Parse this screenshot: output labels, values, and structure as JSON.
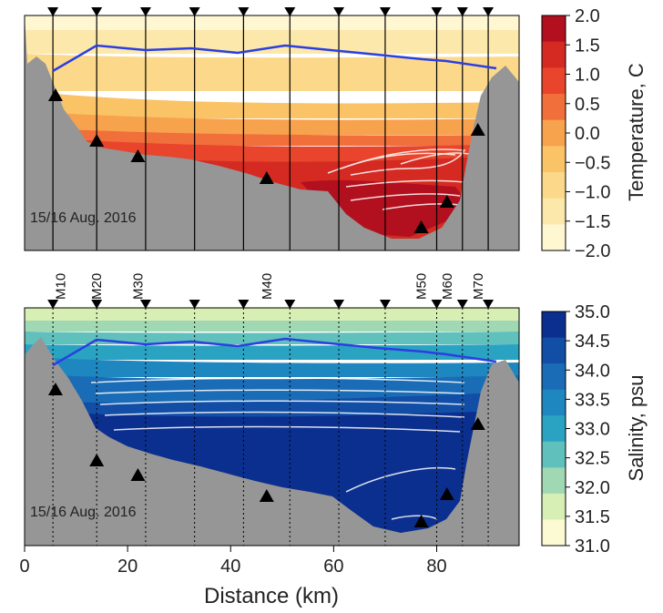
{
  "figure": {
    "xlabel": "Distance (km)",
    "x_ticks": [
      0,
      20,
      40,
      60,
      80
    ],
    "xlim": [
      0,
      96
    ]
  },
  "chart_data": [
    {
      "type": "heatmap",
      "panel": "temperature",
      "date_label": "15/16 Aug. 2016",
      "colorbar_label": "Temperature, C",
      "colorbar_ticks": [
        "2.0",
        "1.5",
        "1.0",
        "0.5",
        "0.0",
        "−0.5",
        "−1.0",
        "−1.5",
        "−2.0"
      ],
      "colorbar_levels": [
        2.0,
        1.5,
        1.0,
        0.5,
        0.0,
        -0.5,
        -1.0,
        -1.5,
        -2.0
      ],
      "colorbar_colors": [
        "#b2101e",
        "#d42a22",
        "#e8452c",
        "#f06f3a",
        "#f7a24c",
        "#fac366",
        "#fcd98a",
        "#fde8ac",
        "#fff6d2"
      ],
      "station_x_km": [
        5.5,
        14,
        23.5,
        33,
        42.5,
        51.5,
        61,
        70,
        80,
        85,
        90
      ],
      "mooring_x_km": [
        5.5,
        14,
        23.5,
        33,
        42.5,
        51.5,
        61,
        70,
        80,
        85,
        90
      ],
      "instrument_markers_x_km": [
        6,
        14,
        22,
        47,
        77,
        82,
        88
      ],
      "blue_line_x_km": [
        5.5,
        14,
        23.5,
        33,
        42.5,
        51.5,
        61,
        70,
        80,
        85,
        94
      ],
      "gridded": true
    },
    {
      "type": "heatmap",
      "panel": "salinity",
      "date_label": "15/16 Aug. 2016",
      "colorbar_label": "Salinity, psu",
      "colorbar_ticks": [
        "35.0",
        "34.5",
        "34.0",
        "33.5",
        "33.0",
        "32.5",
        "32.0",
        "31.5",
        "31.0"
      ],
      "colorbar_levels": [
        35.0,
        34.5,
        34.0,
        33.5,
        33.0,
        32.5,
        32.0,
        31.5,
        31.0
      ],
      "colorbar_colors": [
        "#0b2f8f",
        "#124ea6",
        "#1a6cb6",
        "#1f87c0",
        "#2aa3c2",
        "#5fc0bc",
        "#a1d8b4",
        "#d7eeb5",
        "#fbfad2"
      ],
      "mooring_labels": [
        "M10",
        "M20",
        "M30",
        "M40",
        "M50",
        "M60",
        "M70"
      ],
      "mooring_label_x_km": [
        7,
        14,
        22,
        47,
        77,
        82,
        88
      ],
      "instrument_markers_x_km": [
        6,
        14,
        22,
        47,
        77,
        82,
        88
      ],
      "station_x_km": [
        5.5,
        14,
        23.5,
        33,
        42.5,
        51.5,
        61,
        70,
        80,
        85,
        90
      ],
      "blue_line_x_km": [
        5.5,
        14,
        23.5,
        33,
        42.5,
        51.5,
        61,
        70,
        80,
        85,
        94
      ]
    }
  ]
}
